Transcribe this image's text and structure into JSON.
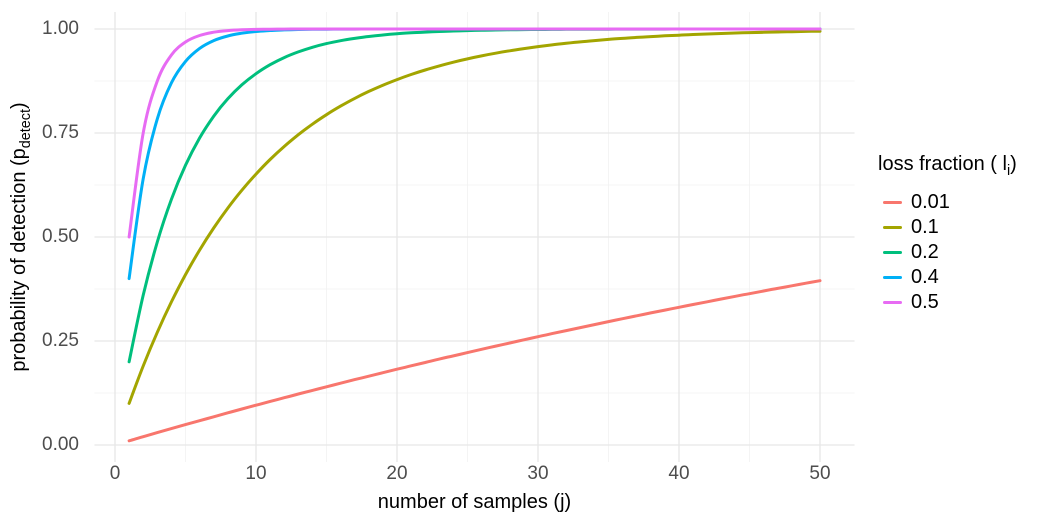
{
  "chart_data": {
    "type": "line",
    "title": "",
    "xlabel": "number of samples (j)",
    "ylabel": "probability of detection (p_detect)",
    "legend_title": "loss fraction ( l_i)",
    "legend_position": "right",
    "grid": true,
    "xlim": [
      0,
      50
    ],
    "ylim": [
      0,
      1
    ],
    "x_major_ticks": [
      0,
      10,
      20,
      30,
      40,
      50
    ],
    "x_minor_ticks": [
      5,
      15,
      25,
      35,
      45
    ],
    "y_major_ticks": [
      0,
      0.25,
      0.5,
      0.75,
      1
    ],
    "y_minor_ticks": [
      0.125,
      0.375,
      0.625,
      0.875
    ],
    "x_tick_labels": [
      "0",
      "10",
      "20",
      "30",
      "40",
      "50"
    ],
    "y_tick_labels": [
      "0.00",
      "0.25",
      "0.50",
      "0.75",
      "1.00"
    ],
    "x": [
      1,
      2,
      3,
      4,
      5,
      6,
      7,
      8,
      9,
      10,
      11,
      12,
      13,
      14,
      15,
      16,
      17,
      18,
      19,
      20,
      21,
      22,
      23,
      24,
      25,
      26,
      27,
      28,
      29,
      30,
      31,
      32,
      33,
      34,
      35,
      36,
      37,
      38,
      39,
      40,
      41,
      42,
      43,
      44,
      45,
      46,
      47,
      48,
      49,
      50
    ],
    "series": [
      {
        "name": "0.01",
        "color": "#F8766D",
        "values": [
          0.01,
          0.0199,
          0.0297,
          0.0394,
          0.049,
          0.0585,
          0.0679,
          0.0773,
          0.0865,
          0.0956,
          0.1047,
          0.1136,
          0.1225,
          0.1313,
          0.1399,
          0.1485,
          0.1571,
          0.1655,
          0.1738,
          0.1821,
          0.1903,
          0.1984,
          0.2064,
          0.2143,
          0.2222,
          0.23,
          0.2377,
          0.2453,
          0.2528,
          0.2603,
          0.2677,
          0.275,
          0.2823,
          0.2894,
          0.2966,
          0.3036,
          0.3106,
          0.3175,
          0.3243,
          0.331,
          0.3377,
          0.3443,
          0.3509,
          0.3574,
          0.3638,
          0.3702,
          0.3765,
          0.3827,
          0.3889,
          0.395
        ]
      },
      {
        "name": "0.1",
        "color": "#A3A500",
        "values": [
          0.1,
          0.19,
          0.271,
          0.3439,
          0.4095,
          0.4686,
          0.5217,
          0.5695,
          0.6126,
          0.6513,
          0.6862,
          0.7176,
          0.7458,
          0.7712,
          0.7941,
          0.8147,
          0.8332,
          0.8499,
          0.8649,
          0.8784,
          0.8906,
          0.9015,
          0.9114,
          0.9202,
          0.9282,
          0.9354,
          0.9419,
          0.9477,
          0.9529,
          0.9576,
          0.9618,
          0.9657,
          0.9691,
          0.9722,
          0.975,
          0.9775,
          0.9797,
          0.9817,
          0.9836,
          0.9852,
          0.9867,
          0.988,
          0.9892,
          0.9903,
          0.9913,
          0.9921,
          0.9929,
          0.9936,
          0.9943,
          0.9948
        ]
      },
      {
        "name": "0.2",
        "color": "#00BF7D",
        "values": [
          0.2,
          0.36,
          0.488,
          0.5904,
          0.6723,
          0.7379,
          0.7903,
          0.8322,
          0.8658,
          0.8926,
          0.9141,
          0.9313,
          0.945,
          0.956,
          0.9648,
          0.9719,
          0.9775,
          0.982,
          0.9856,
          0.9885,
          0.9908,
          0.9926,
          0.9941,
          0.9953,
          0.9962,
          0.997,
          0.9976,
          0.9981,
          0.9985,
          0.9988,
          0.999,
          0.9992,
          0.9994,
          0.9995,
          0.9996,
          0.9997,
          0.9997,
          0.9998,
          0.9998,
          0.9999,
          0.9999,
          0.9999,
          0.9999,
          0.9999,
          1,
          1,
          1,
          1,
          1,
          1
        ]
      },
      {
        "name": "0.4",
        "color": "#00B0F6",
        "values": [
          0.4,
          0.64,
          0.784,
          0.8704,
          0.9222,
          0.9533,
          0.972,
          0.9832,
          0.9899,
          0.994,
          0.9964,
          0.9978,
          0.9987,
          0.9992,
          0.9995,
          0.9997,
          0.9998,
          0.9999,
          0.9999,
          1,
          1,
          1,
          1,
          1,
          1,
          1,
          1,
          1,
          1,
          1,
          1,
          1,
          1,
          1,
          1,
          1,
          1,
          1,
          1,
          1,
          1,
          1,
          1,
          1,
          1,
          1,
          1,
          1,
          1,
          1
        ]
      },
      {
        "name": "0.5",
        "color": "#E76BF3",
        "values": [
          0.5,
          0.75,
          0.875,
          0.9375,
          0.9688,
          0.9844,
          0.9922,
          0.9961,
          0.998,
          0.999,
          0.9995,
          0.9998,
          0.9999,
          0.9999,
          1,
          1,
          1,
          1,
          1,
          1,
          1,
          1,
          1,
          1,
          1,
          1,
          1,
          1,
          1,
          1,
          1,
          1,
          1,
          1,
          1,
          1,
          1,
          1,
          1,
          1,
          1,
          1,
          1,
          1,
          1,
          1,
          1,
          1,
          1,
          1
        ]
      }
    ]
  },
  "x_axis_title": "number of samples (j)",
  "y_axis_title": {
    "main": "probability of detection (p",
    "sub": "detect",
    "end": ")"
  },
  "legend": {
    "title_main": "loss fraction ( l",
    "title_sub": "i",
    "title_end": ")",
    "items": [
      {
        "label": "0.01",
        "color": "#F8766D"
      },
      {
        "label": "0.1",
        "color": "#A3A500"
      },
      {
        "label": "0.2",
        "color": "#00BF7D"
      },
      {
        "label": "0.4",
        "color": "#00B0F6"
      },
      {
        "label": "0.5",
        "color": "#E76BF3"
      }
    ]
  },
  "style": {
    "grid_major_color": "#e6e6e6",
    "grid_minor_color": "#f2f2f2",
    "tick_label_color": "#4d4d4d",
    "background": "#ffffff"
  }
}
